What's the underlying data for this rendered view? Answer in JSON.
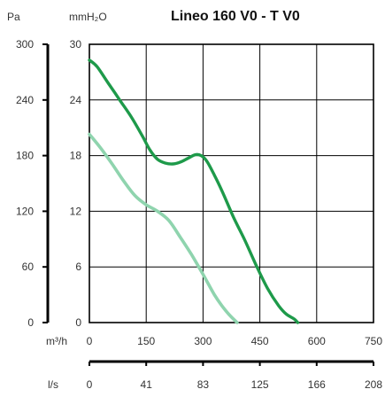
{
  "chart_data": {
    "type": "line",
    "title": "Lineo 160 V0  - T V0",
    "x_unit_primary": "m³/h",
    "x_unit_secondary": "l/s",
    "y_unit_left": "Pa",
    "y_unit_right": "mmH₂O",
    "x_ticks_primary": [
      "0",
      "150",
      "300",
      "450",
      "600",
      "750"
    ],
    "x_ticks_secondary": [
      "0",
      "41",
      "83",
      "125",
      "166",
      "208"
    ],
    "y_ticks_left": [
      "0",
      "60",
      "120",
      "180",
      "240",
      "300"
    ],
    "y_ticks_right": [
      "0",
      "6",
      "12",
      "18",
      "24",
      "30"
    ],
    "xlim": [
      0,
      750
    ],
    "ylim": [
      0,
      300
    ],
    "grid": true,
    "series": [
      {
        "color": "#1e9a4a",
        "x": [
          0,
          20,
          50,
          80,
          110,
          140,
          160,
          180,
          200,
          220,
          240,
          260,
          280,
          295,
          310,
          330,
          350,
          380,
          410,
          440,
          470,
          500,
          520,
          540,
          550
        ],
        "y": [
          283,
          276,
          258,
          240,
          222,
          201,
          186,
          176,
          172,
          171,
          173,
          177,
          181,
          180,
          174,
          159,
          142,
          114,
          89,
          62,
          37,
          18,
          9,
          4,
          0
        ]
      },
      {
        "color": "#8fd4ae",
        "x": [
          0,
          30,
          60,
          90,
          120,
          150,
          180,
          210,
          240,
          270,
          300,
          330,
          350,
          370,
          390
        ],
        "y": [
          203,
          188,
          171,
          153,
          137,
          127,
          120,
          110,
          92,
          73,
          52,
          30,
          18,
          8,
          0
        ]
      }
    ]
  }
}
